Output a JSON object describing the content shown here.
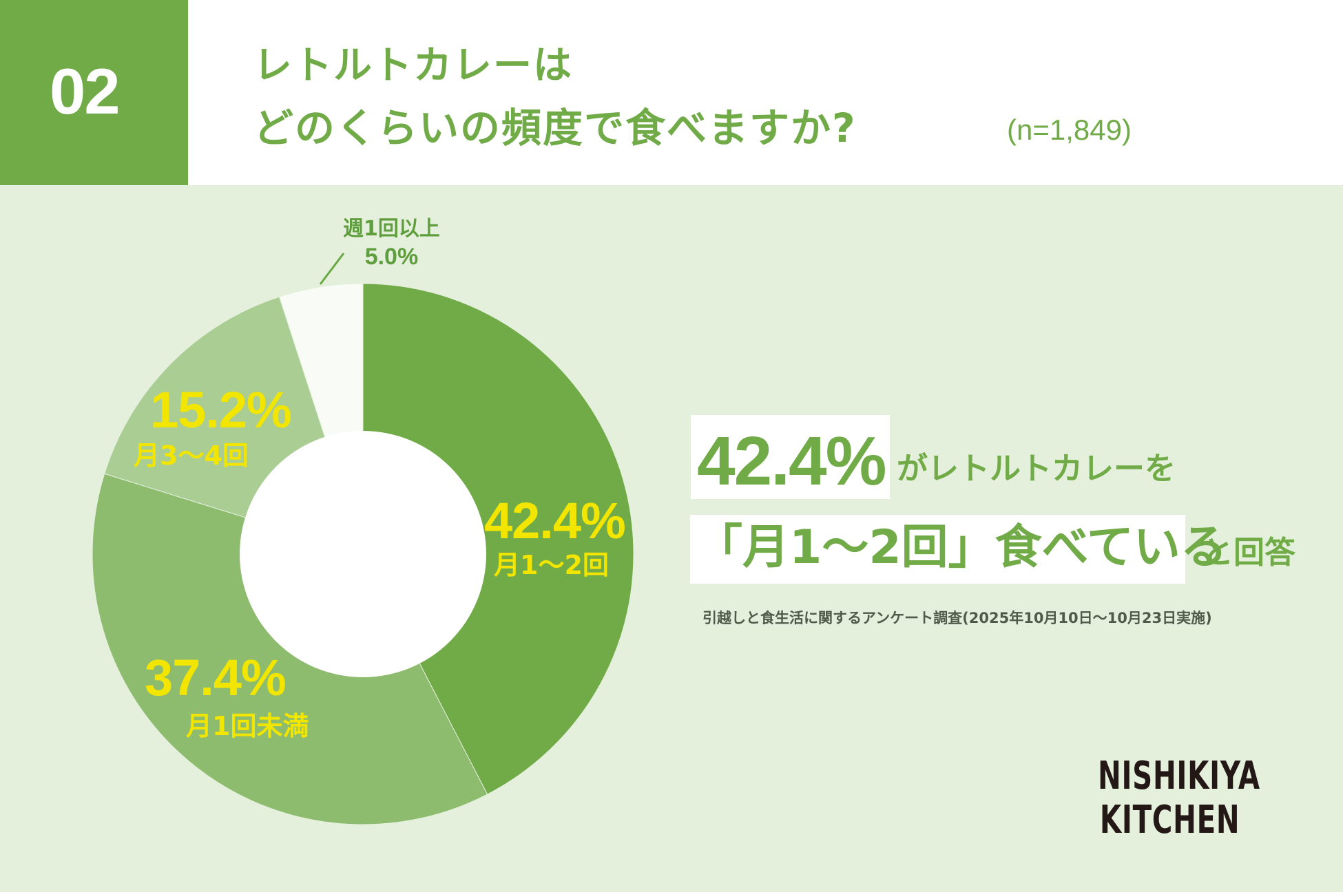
{
  "header": {
    "number": "02",
    "title_line1": "レトルトカレーは",
    "title_line2": "どのくらいの頻度で食べますか?",
    "sample_size": "(n=1,849)"
  },
  "callout": {
    "big_value": "42.4%",
    "line1_suffix": "がレトルトカレーを",
    "line2_highlight": "「月1〜2回」食べている",
    "line2_suffix": "と回答"
  },
  "footnote": "引越しと食生活に関するアンケート調査(2025年10月10日〜10月23日実施)",
  "logo": {
    "line1": "NISHIKIYA",
    "line2": "KITCHEN"
  },
  "colors": {
    "background": "#e4f0dc",
    "accent": "#70ab47",
    "label_yellow": "#f2e600"
  },
  "chart_data": {
    "type": "pie",
    "subtype": "donut",
    "title": "レトルトカレーはどのくらいの頻度で食べますか?",
    "n": 1849,
    "unit": "%",
    "categories": [
      "月1〜2回",
      "月1回未満",
      "月3〜4回",
      "週1回以上"
    ],
    "values": [
      42.4,
      37.4,
      15.2,
      5.0
    ],
    "slices": [
      {
        "label": "月1〜2回",
        "value": 42.4,
        "value_label": "42.4%",
        "color": "#70ab47"
      },
      {
        "label": "月1回未満",
        "value": 37.4,
        "value_label": "37.4%",
        "color": "#8dbc6f"
      },
      {
        "label": "月3〜4回",
        "value": 15.2,
        "value_label": "15.2%",
        "color": "#a9cd93"
      },
      {
        "label": "週1回以上",
        "value": 5.0,
        "value_label": "5.0%",
        "color": "#f8fbf6"
      }
    ],
    "start_angle": "12 o'clock",
    "direction": "clockwise",
    "legend": "none (direct labels)"
  }
}
